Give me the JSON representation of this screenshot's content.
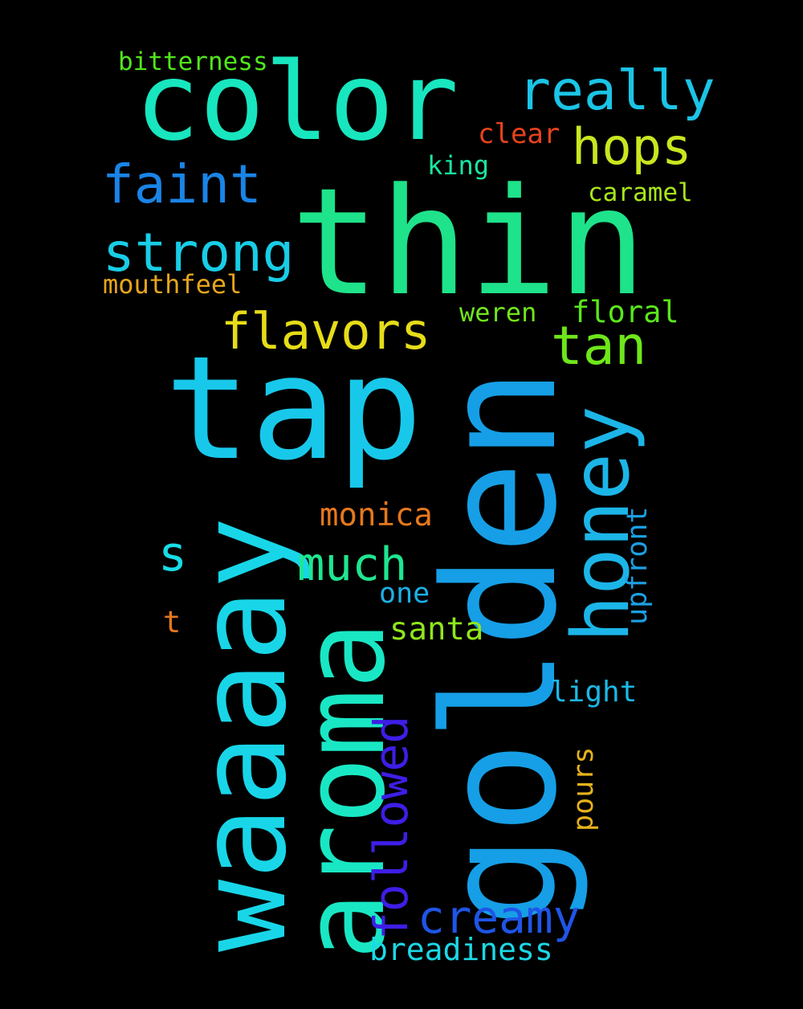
{
  "words": [
    {
      "id": "thin",
      "text": "thin",
      "color": "#1ee38a"
    },
    {
      "id": "golden",
      "text": "golden",
      "color": "#169fe6"
    },
    {
      "id": "tap",
      "text": "tap",
      "color": "#18c8ea"
    },
    {
      "id": "waaaay",
      "text": "waaaay",
      "color": "#18d6e8"
    },
    {
      "id": "aroma",
      "text": "aroma",
      "color": "#19e7c4"
    },
    {
      "id": "color",
      "text": "color",
      "color": "#18e6bf"
    },
    {
      "id": "honey",
      "text": "honey",
      "color": "#1cb5e8"
    },
    {
      "id": "really",
      "text": "really",
      "color": "#1bc4e6"
    },
    {
      "id": "hops",
      "text": "hops",
      "color": "#c9e620"
    },
    {
      "id": "faint",
      "text": "faint",
      "color": "#1a84e6"
    },
    {
      "id": "strong",
      "text": "strong",
      "color": "#18cde6"
    },
    {
      "id": "flavors",
      "text": "flavors",
      "color": "#e6dc18"
    },
    {
      "id": "tan",
      "text": "tan",
      "color": "#6ee61a"
    },
    {
      "id": "much",
      "text": "much",
      "color": "#1ee690"
    },
    {
      "id": "creamy",
      "text": "creamy",
      "color": "#1f55e6"
    },
    {
      "id": "followed",
      "text": "followed",
      "color": "#3d1ee6"
    },
    {
      "id": "s",
      "text": "s",
      "color": "#18dde6"
    },
    {
      "id": "bitterness",
      "text": "bitterness",
      "color": "#50e61c"
    },
    {
      "id": "clear",
      "text": "clear",
      "color": "#e6421c"
    },
    {
      "id": "king",
      "text": "king",
      "color": "#18e6a4"
    },
    {
      "id": "caramel",
      "text": "caramel",
      "color": "#a8e61a"
    },
    {
      "id": "mouthfeel",
      "text": "mouthfeel",
      "color": "#e6a51c"
    },
    {
      "id": "weren",
      "text": "weren",
      "color": "#70e61c"
    },
    {
      "id": "floral",
      "text": "floral",
      "color": "#5ae61c"
    },
    {
      "id": "monica",
      "text": "monica",
      "color": "#e6781c"
    },
    {
      "id": "one",
      "text": "one",
      "color": "#1cb0e6"
    },
    {
      "id": "t",
      "text": "t",
      "color": "#e6781c"
    },
    {
      "id": "santa",
      "text": "santa",
      "color": "#90e61c"
    },
    {
      "id": "upfront",
      "text": "upfront",
      "color": "#1ca0e6"
    },
    {
      "id": "light",
      "text": "light",
      "color": "#1cb8e6"
    },
    {
      "id": "pours",
      "text": "pours",
      "color": "#e6b21c"
    },
    {
      "id": "breadiness",
      "text": "breadiness",
      "color": "#1cd8e6"
    }
  ]
}
